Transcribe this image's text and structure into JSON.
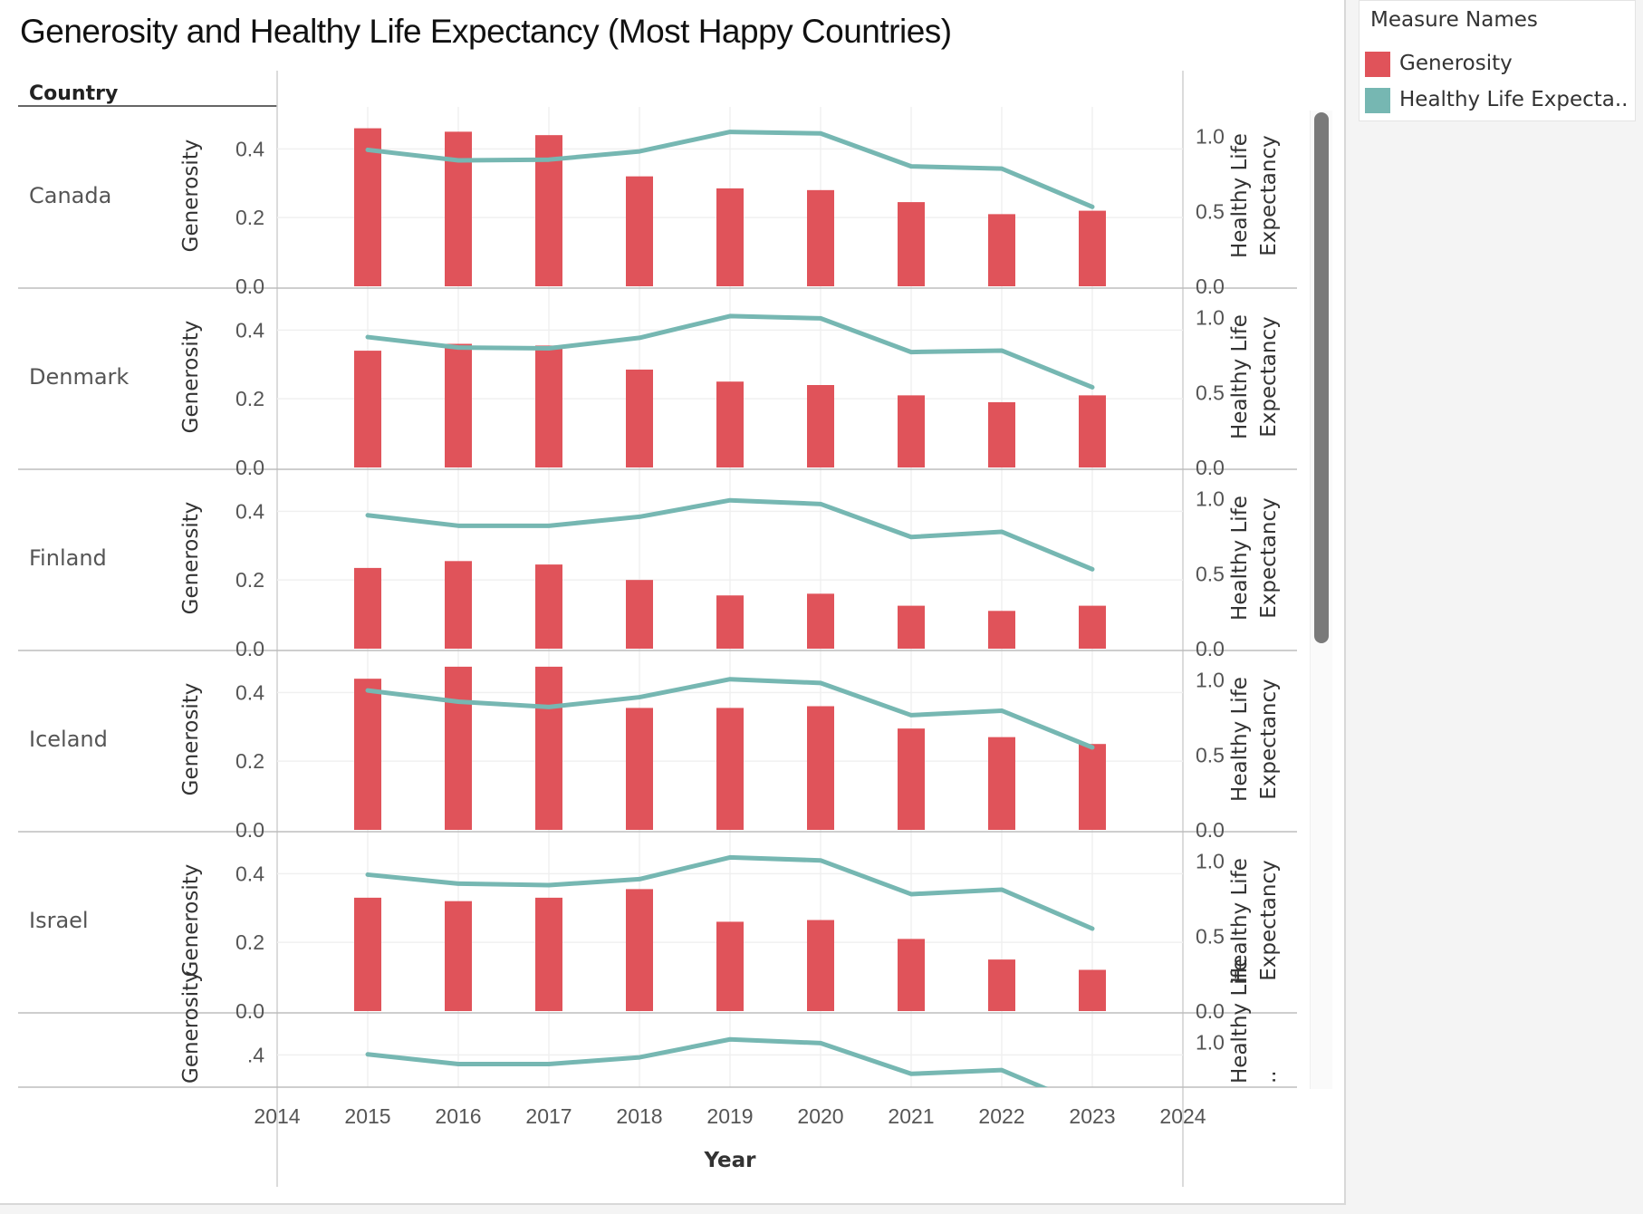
{
  "title": "Generosity and Healthy Life Expectancy (Most Happy Countries)",
  "legend": {
    "title": "Measure Names",
    "items": [
      {
        "label": "Generosity",
        "color": "#e0535a"
      },
      {
        "label": "Healthy Life Expecta..",
        "color": "#76b7b2"
      }
    ]
  },
  "row_header": "Country",
  "chart_data": {
    "type": "bar",
    "combo": "dual-axis bar + line",
    "x": [
      2015,
      2016,
      2017,
      2018,
      2019,
      2020,
      2021,
      2022,
      2023
    ],
    "x_ticks": [
      "2014",
      "2015",
      "2016",
      "2017",
      "2018",
      "2019",
      "2020",
      "2021",
      "2022",
      "2023",
      "2024"
    ],
    "xlabel": "Year",
    "left_axis": {
      "label": "Generosity",
      "ticks": [
        "0.0",
        "0.2",
        "0.4"
      ],
      "range": [
        0,
        0.48
      ]
    },
    "right_axis": {
      "label": "Healthy Life Expectancy",
      "ticks": [
        "0.0",
        "0.5",
        "1.0"
      ],
      "range": [
        0,
        1.1
      ]
    },
    "panels": [
      {
        "country": "Canada",
        "generosity": [
          0.46,
          0.45,
          0.44,
          0.32,
          0.285,
          0.28,
          0.245,
          0.21,
          0.22
        ],
        "healthy_life_expectancy": [
          0.91,
          0.84,
          0.845,
          0.9,
          1.03,
          1.02,
          0.8,
          0.785,
          0.53
        ]
      },
      {
        "country": "Denmark",
        "generosity": [
          0.34,
          0.36,
          0.355,
          0.285,
          0.25,
          0.24,
          0.21,
          0.19,
          0.21
        ],
        "healthy_life_expectancy": [
          0.87,
          0.8,
          0.795,
          0.865,
          1.01,
          0.995,
          0.77,
          0.78,
          0.535
        ]
      },
      {
        "country": "Finland",
        "generosity": [
          0.235,
          0.255,
          0.245,
          0.2,
          0.155,
          0.16,
          0.125,
          0.11,
          0.125
        ],
        "healthy_life_expectancy": [
          0.89,
          0.82,
          0.82,
          0.88,
          0.99,
          0.965,
          0.745,
          0.78,
          0.53
        ]
      },
      {
        "country": "Iceland",
        "generosity": [
          0.44,
          0.475,
          0.475,
          0.355,
          0.355,
          0.36,
          0.295,
          0.27,
          0.25
        ],
        "healthy_life_expectancy": [
          0.93,
          0.855,
          0.82,
          0.885,
          1.005,
          0.98,
          0.765,
          0.795,
          0.55
        ]
      },
      {
        "country": "Israel",
        "generosity": [
          0.33,
          0.32,
          0.33,
          0.355,
          0.26,
          0.265,
          0.21,
          0.15,
          0.12
        ],
        "healthy_life_expectancy": [
          0.91,
          0.85,
          0.84,
          0.88,
          1.025,
          1.005,
          0.78,
          0.81,
          0.55
        ]
      },
      {
        "country": "",
        "generosity": [],
        "healthy_life_expectancy": [
          0.92,
          0.855,
          0.855,
          0.9,
          1.02,
          0.995,
          0.79,
          0.815,
          0.56
        ],
        "clipped": true,
        "left_label": "Generosity",
        "right_label": "Healthy Life ..",
        "left_ticks": [
          ".4"
        ],
        "right_ticks": [
          "1.0"
        ]
      }
    ]
  }
}
